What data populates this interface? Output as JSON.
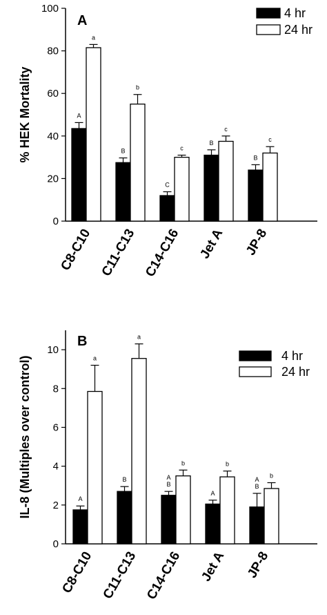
{
  "chart_data": [
    {
      "type": "bar",
      "panel": "A",
      "ylabel": "% HEK Mortality",
      "ylim": [
        0,
        100
      ],
      "yticks": [
        0,
        20,
        40,
        60,
        80,
        100
      ],
      "categories": [
        "C8-C10",
        "C11-C13",
        "C14-C16",
        "Jet A",
        "JP-8"
      ],
      "legend_position": "top-right",
      "series": [
        {
          "name": "4 hr",
          "fill": "#000000",
          "values": [
            43.5,
            27.5,
            12,
            31,
            24
          ],
          "errors": [
            2.8,
            2.2,
            1.8,
            2.5,
            2.5
          ],
          "labels": [
            "A",
            "B",
            "C",
            "B",
            "B"
          ]
        },
        {
          "name": "24 hr",
          "fill": "#ffffff",
          "values": [
            81.5,
            55,
            30,
            37.5,
            32
          ],
          "errors": [
            1.5,
            4.5,
            1,
            2.5,
            3
          ],
          "labels": [
            "a",
            "b",
            "c",
            "c",
            "c"
          ]
        }
      ]
    },
    {
      "type": "bar",
      "panel": "B",
      "ylabel": "IL-8 (Multiples over control)",
      "ylim": [
        0,
        11
      ],
      "yticks": [
        0,
        2,
        4,
        6,
        8,
        10
      ],
      "categories": [
        "C8-C10",
        "C11-C13",
        "C14-C16",
        "Jet A",
        "JP-8"
      ],
      "legend_position": "top-right",
      "series": [
        {
          "name": "4 hr",
          "fill": "#000000",
          "values": [
            1.75,
            2.7,
            2.5,
            2.05,
            1.9
          ],
          "errors": [
            0.2,
            0.25,
            0.2,
            0.2,
            0.7
          ],
          "labels": [
            [
              "A"
            ],
            [
              "B"
            ],
            [
              "A",
              "B"
            ],
            [
              "A"
            ],
            [
              "A",
              "B"
            ]
          ]
        },
        {
          "name": "24 hr",
          "fill": "#ffffff",
          "values": [
            7.85,
            9.55,
            3.5,
            3.45,
            2.85
          ],
          "errors": [
            1.35,
            0.75,
            0.3,
            0.3,
            0.3
          ],
          "labels": [
            [
              "a"
            ],
            [
              "a"
            ],
            [
              "b"
            ],
            [
              "b"
            ],
            [
              "b"
            ]
          ]
        }
      ]
    }
  ]
}
